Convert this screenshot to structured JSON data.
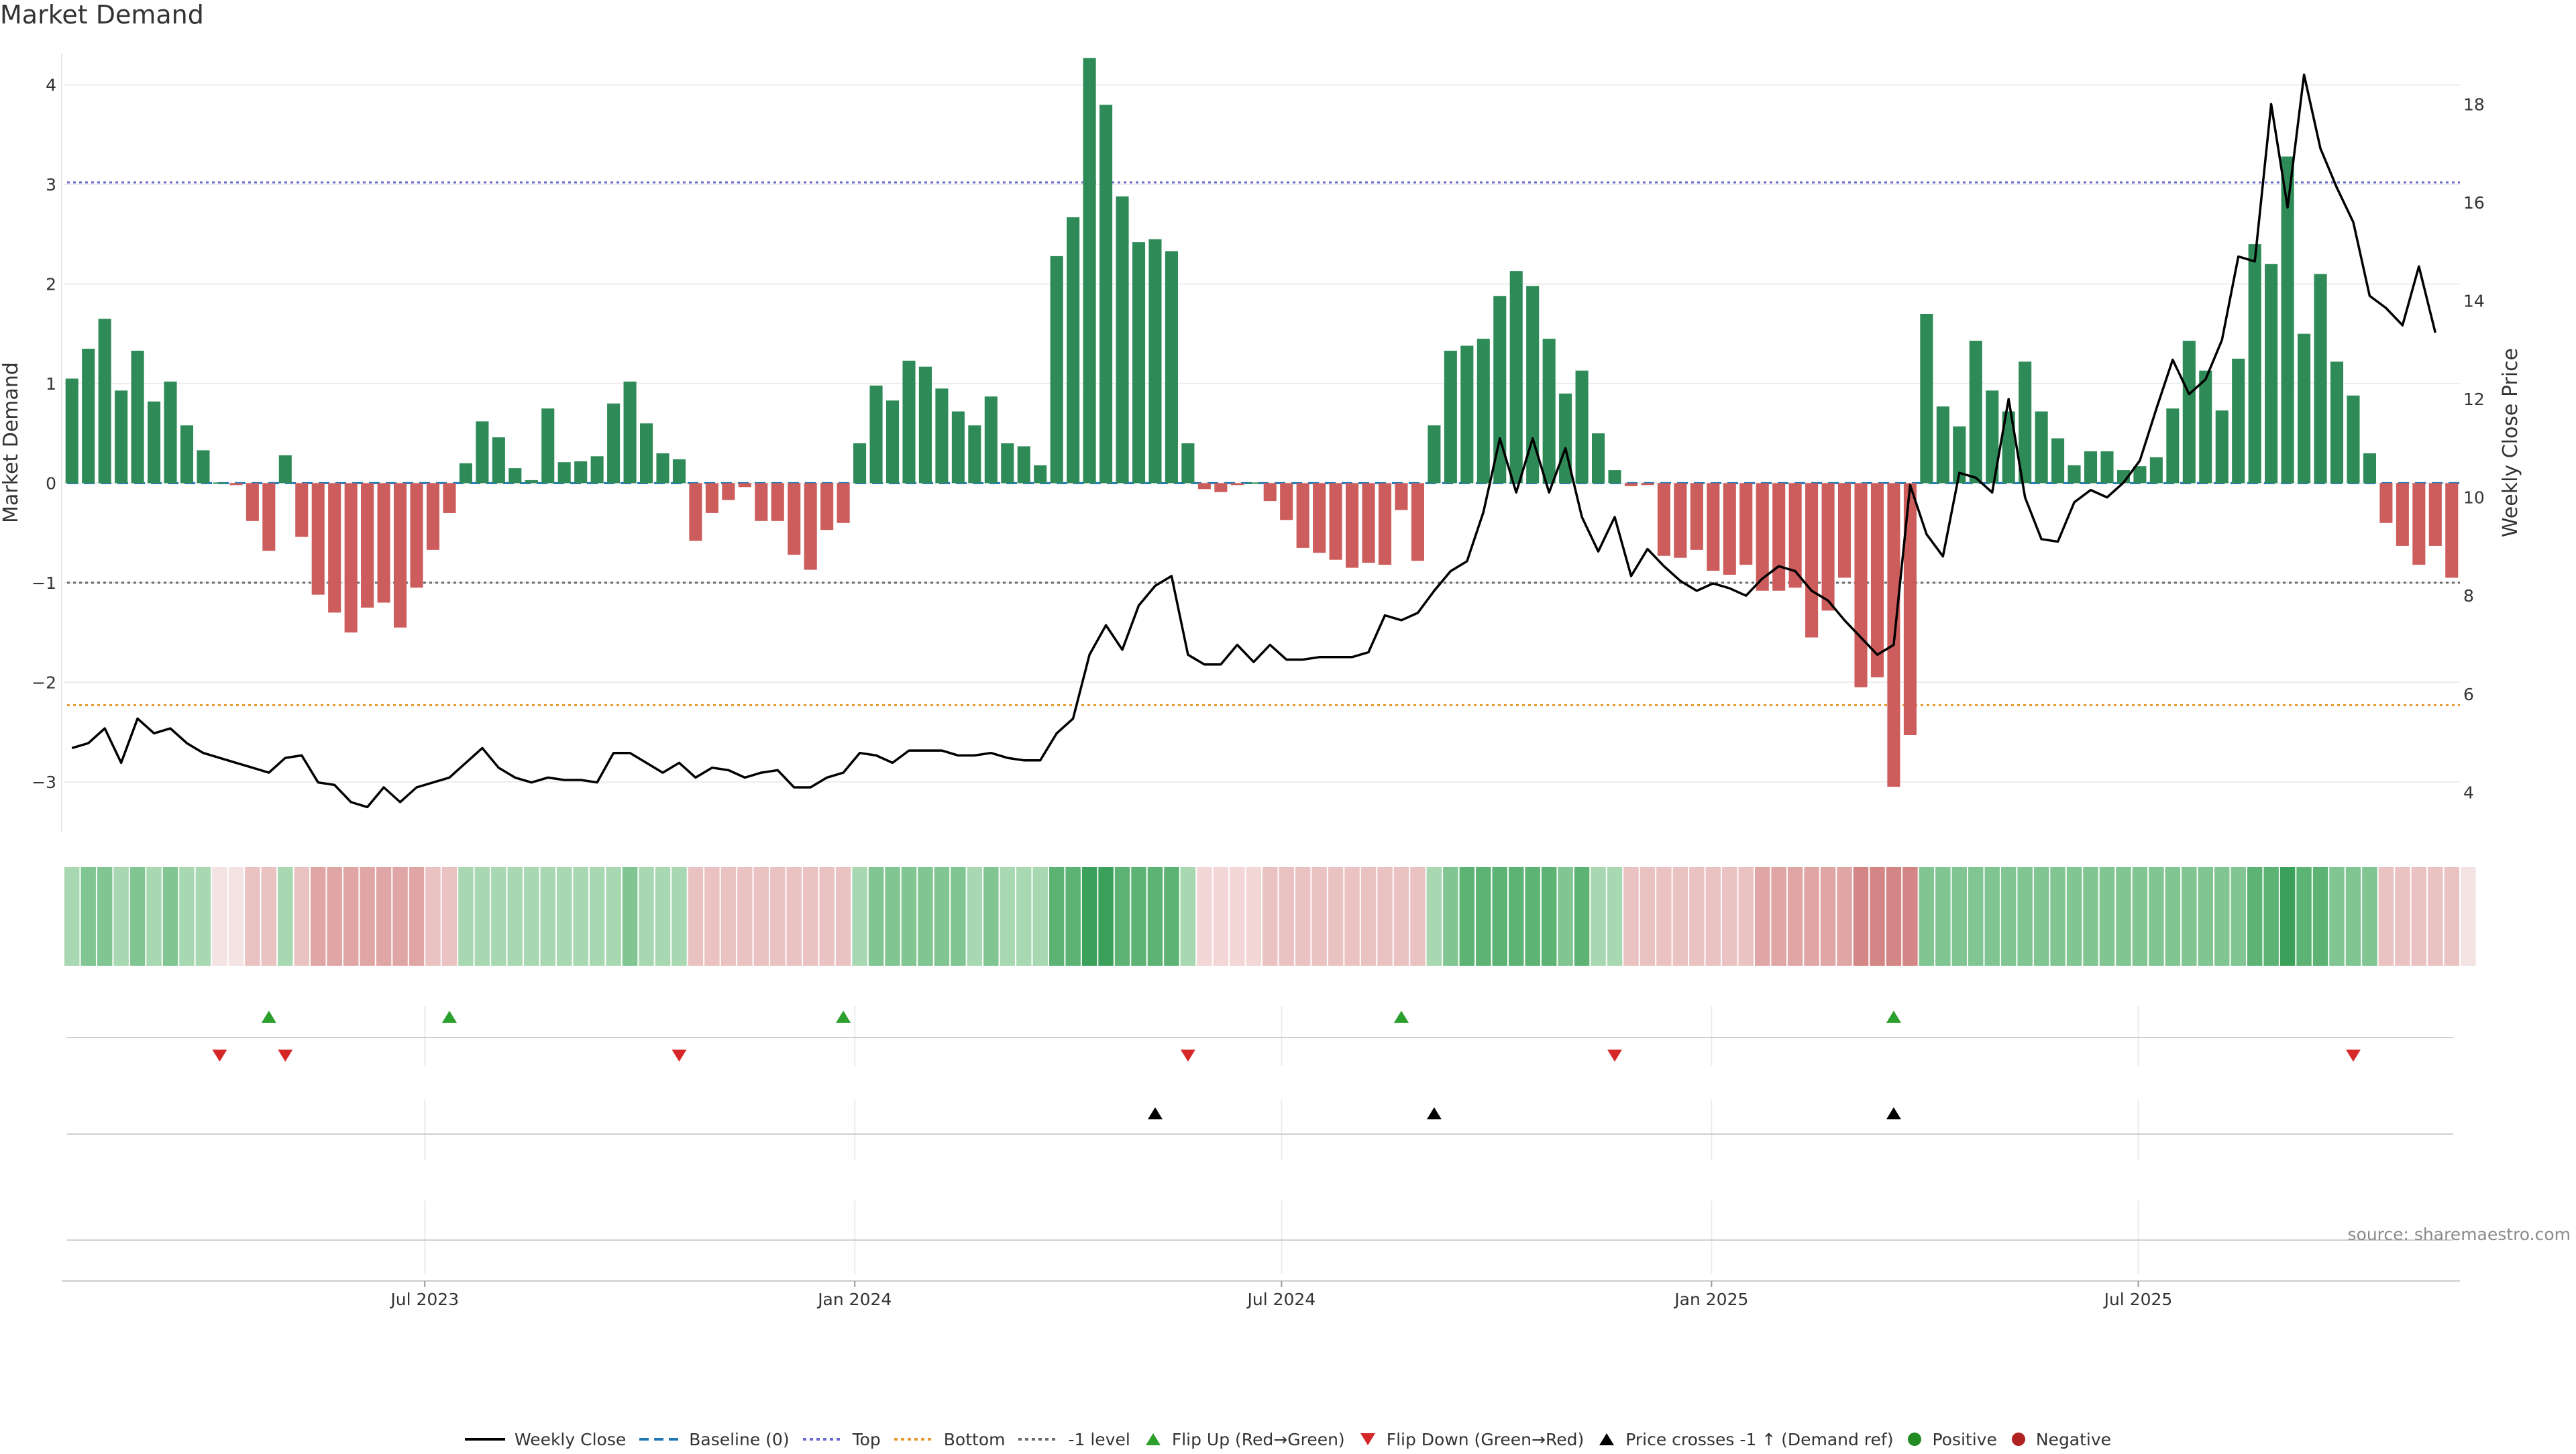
{
  "title": "Market Demand",
  "source": "source: sharemaestro.com",
  "colors": {
    "positive_bar": "#2e8b57",
    "negative_bar": "#cd5c5c",
    "price_line": "#000000",
    "baseline": "#1f77b4",
    "top": "#6a6acd",
    "bottom": "#e69a2e",
    "minus1": "#6b6b6b",
    "flip_up": "#2ca02c",
    "flip_down": "#d62728",
    "cross": "#000000",
    "positive_dot": "#228b22",
    "negative_dot": "#b22222"
  },
  "chart_data": {
    "type": "bar+line",
    "title": "Market Demand",
    "ylabel_left": "Market Demand",
    "ylabel_right": "Weekly Close Price",
    "ylim_left": [
      -3.5,
      4.3
    ],
    "ylim_right": [
      3.2,
      19.0
    ],
    "yticks_left": [
      -3,
      -2,
      -1,
      0,
      1,
      2,
      3,
      4
    ],
    "yticks_left_labels": [
      "−3",
      "−2",
      "−1",
      "0",
      "1",
      "2",
      "3",
      "4"
    ],
    "yticks_right": [
      4,
      6,
      8,
      10,
      12,
      14,
      16,
      18
    ],
    "xticks": [
      {
        "label": "Jul 2023",
        "index": 21.5
      },
      {
        "label": "Jan 2024",
        "index": 47.7
      },
      {
        "label": "Jul 2024",
        "index": 73.7
      },
      {
        "label": "Jan 2025",
        "index": 99.9
      },
      {
        "label": "Jul 2025",
        "index": 125.9
      }
    ],
    "reference_lines": {
      "top": 3.02,
      "bottom": -2.23,
      "minus1": -1.0,
      "baseline": 0
    },
    "demand": [
      1.05,
      1.35,
      1.65,
      0.93,
      1.33,
      0.82,
      1.02,
      0.58,
      0.33,
      0.0,
      -0.02,
      -0.38,
      -0.68,
      0.28,
      -0.54,
      -1.12,
      -1.3,
      -1.5,
      -1.25,
      -1.2,
      -1.45,
      -1.05,
      -0.67,
      -0.3,
      0.2,
      0.62,
      0.46,
      0.15,
      0.03,
      0.75,
      0.21,
      0.22,
      0.27,
      0.8,
      1.02,
      0.6,
      0.3,
      0.24,
      -0.58,
      -0.3,
      -0.17,
      -0.04,
      -0.38,
      -0.38,
      -0.72,
      -0.87,
      -0.47,
      -0.4,
      0.4,
      0.98,
      0.83,
      1.23,
      1.17,
      0.95,
      0.72,
      0.58,
      0.87,
      0.4,
      0.37,
      0.18,
      2.28,
      2.67,
      4.27,
      3.8,
      2.88,
      2.42,
      2.45,
      2.33,
      0.4,
      -0.06,
      -0.09,
      -0.02,
      0.0,
      -0.18,
      -0.37,
      -0.65,
      -0.7,
      -0.77,
      -0.85,
      -0.8,
      -0.82,
      -0.27,
      -0.78,
      0.58,
      1.33,
      1.38,
      1.45,
      1.88,
      2.13,
      1.98,
      1.45,
      0.9,
      1.13,
      0.5,
      0.13,
      -0.03,
      -0.02,
      -0.73,
      -0.75,
      -0.67,
      -0.88,
      -0.92,
      -0.82,
      -1.08,
      -1.08,
      -1.05,
      -1.55,
      -1.28,
      -0.95,
      -2.05,
      -1.95,
      -3.05,
      -2.53,
      1.7,
      0.77,
      0.57,
      1.43,
      0.93,
      0.72,
      1.22,
      0.72,
      0.45,
      0.18,
      0.32,
      0.32,
      0.13,
      0.17,
      0.26,
      0.75,
      1.43,
      1.13,
      0.73,
      1.25,
      2.4,
      2.2,
      3.28,
      1.5,
      2.1,
      1.22,
      0.88,
      0.3,
      -0.4,
      -0.63,
      -0.82,
      -0.63,
      -0.95
    ],
    "weekly_close": [
      4.9,
      5.0,
      5.3,
      4.6,
      5.5,
      5.2,
      5.3,
      5.0,
      4.8,
      4.7,
      4.6,
      4.5,
      4.4,
      4.7,
      4.75,
      4.2,
      4.15,
      3.8,
      3.7,
      4.1,
      3.8,
      4.1,
      4.2,
      4.3,
      4.6,
      4.9,
      4.5,
      4.3,
      4.2,
      4.3,
      4.25,
      4.25,
      4.2,
      4.8,
      4.8,
      4.6,
      4.4,
      4.6,
      4.3,
      4.5,
      4.45,
      4.3,
      4.4,
      4.45,
      4.1,
      4.1,
      4.3,
      4.4,
      4.8,
      4.75,
      4.6,
      4.85,
      4.85,
      4.85,
      4.75,
      4.75,
      4.8,
      4.7,
      4.65,
      4.65,
      5.2,
      5.5,
      6.8,
      7.4,
      6.9,
      7.8,
      8.2,
      8.4,
      6.8,
      6.6,
      6.6,
      7.0,
      6.65,
      7.0,
      6.7,
      6.7,
      6.75,
      6.75,
      6.75,
      6.85,
      7.6,
      7.5,
      7.65,
      8.1,
      8.5,
      8.7,
      9.7,
      11.2,
      10.1,
      11.2,
      10.1,
      11.0,
      9.6,
      8.9,
      9.6,
      8.4,
      8.95,
      8.6,
      8.3,
      8.1,
      8.25,
      8.15,
      8.0,
      8.35,
      8.6,
      8.5,
      8.1,
      7.9,
      7.5,
      7.15,
      6.8,
      7.0,
      10.25,
      9.25,
      8.8,
      10.5,
      10.4,
      10.1,
      12.0,
      10.0,
      9.15,
      9.1,
      9.9,
      10.15,
      10.0,
      10.3,
      10.75,
      11.8,
      12.8,
      12.1,
      12.4,
      13.2,
      14.9,
      14.8,
      18.0,
      15.9,
      18.6,
      17.1,
      16.3,
      15.6,
      14.1,
      13.85,
      13.5,
      14.7,
      13.35
    ],
    "band_levels": [
      1,
      2,
      2,
      1,
      2,
      1,
      2,
      1,
      1,
      1,
      0,
      1,
      1,
      1,
      1,
      2,
      2,
      2,
      2,
      2,
      2,
      2,
      1,
      1,
      1,
      1,
      1,
      1,
      1,
      1,
      1,
      1,
      1,
      1,
      2,
      1,
      1,
      1,
      1,
      1,
      1,
      1,
      1,
      1,
      1,
      1,
      1,
      1,
      1,
      2,
      2,
      2,
      2,
      2,
      2,
      1,
      2,
      1,
      1,
      1,
      3,
      3,
      4,
      4,
      3,
      3,
      3,
      3,
      1,
      0,
      0,
      0,
      0,
      1,
      1,
      1,
      1,
      1,
      1,
      1,
      1,
      1,
      1,
      1,
      2,
      3,
      3,
      3,
      3,
      3,
      3,
      2,
      3,
      1,
      1,
      1,
      1,
      1,
      1,
      1,
      1,
      1,
      1,
      2,
      2,
      2,
      2,
      2,
      2,
      3,
      3,
      3,
      3,
      2,
      2,
      2,
      2,
      2,
      2,
      2,
      2,
      2,
      2,
      2,
      2,
      2,
      2,
      2,
      2,
      2,
      2,
      2,
      2,
      3,
      3,
      4,
      3,
      3,
      2,
      2,
      2,
      1,
      1,
      1,
      1,
      1,
      1
    ],
    "band_signs": [
      1,
      1,
      1,
      1,
      1,
      1,
      1,
      1,
      1,
      0,
      0,
      -1,
      -1,
      1,
      -1,
      -1,
      -1,
      -1,
      -1,
      -1,
      -1,
      -1,
      -1,
      -1,
      1,
      1,
      1,
      1,
      1,
      1,
      1,
      1,
      1,
      1,
      1,
      1,
      1,
      1,
      -1,
      -1,
      -1,
      -1,
      -1,
      -1,
      -1,
      -1,
      -1,
      -1,
      1,
      1,
      1,
      1,
      1,
      1,
      1,
      1,
      1,
      1,
      1,
      1,
      1,
      1,
      1,
      1,
      1,
      1,
      1,
      1,
      1,
      -1,
      -1,
      -1,
      -1,
      -1,
      -1,
      -1,
      -1,
      -1,
      -1,
      -1,
      -1,
      -1,
      -1,
      1,
      1,
      1,
      1,
      1,
      1,
      1,
      1,
      1,
      1,
      1,
      1,
      -1,
      -1,
      -1,
      -1,
      -1,
      -1,
      -1,
      -1,
      -1,
      -1,
      -1,
      -1,
      -1,
      -1,
      -1,
      -1,
      -1,
      -1,
      1,
      1,
      1,
      1,
      1,
      1,
      1,
      1,
      1,
      1,
      1,
      1,
      1,
      1,
      1,
      1,
      1,
      1,
      1,
      1,
      1,
      1,
      1,
      1,
      1,
      1,
      1,
      1,
      -1,
      -1,
      -1,
      -1,
      -1
    ],
    "flip_up_indices": [
      12,
      23,
      47,
      81,
      111
    ],
    "flip_down_indices": [
      9,
      13,
      37,
      68,
      94,
      139
    ],
    "price_cross_indices": [
      66,
      83,
      111
    ]
  },
  "legend": [
    {
      "key": "weekly_close",
      "label": "Weekly Close"
    },
    {
      "key": "baseline",
      "label": "Baseline (0)"
    },
    {
      "key": "top",
      "label": "Top"
    },
    {
      "key": "bottom",
      "label": "Bottom"
    },
    {
      "key": "minus1",
      "label": "-1 level"
    },
    {
      "key": "flip_up",
      "label": "Flip Up (Red→Green)"
    },
    {
      "key": "flip_down",
      "label": "Flip Down (Green→Red)"
    },
    {
      "key": "cross",
      "label": "Price crosses -1 ↑ (Demand ref)"
    },
    {
      "key": "positive",
      "label": "Positive"
    },
    {
      "key": "negative",
      "label": "Negative"
    }
  ]
}
